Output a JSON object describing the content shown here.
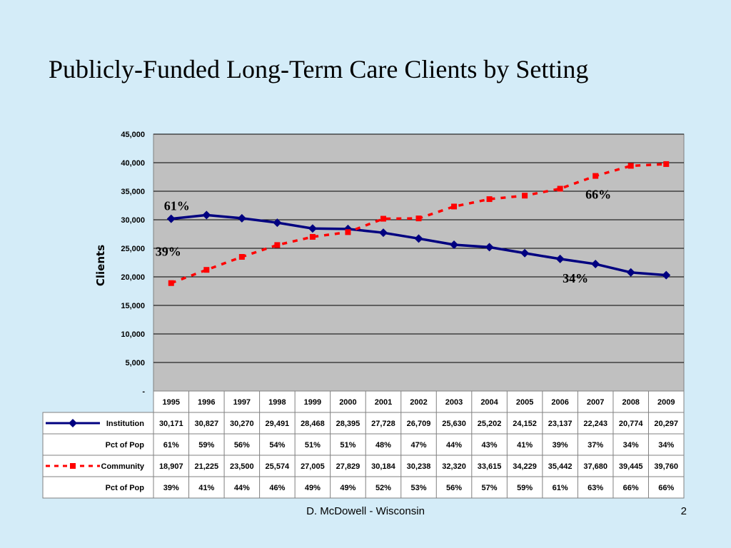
{
  "slide": {
    "title": "Publicly-Funded Long-Term Care Clients by Setting",
    "footer": "D. McDowell - Wisconsin",
    "page_number": "2"
  },
  "chart_data": {
    "type": "line",
    "title": "",
    "xlabel": "",
    "ylabel": "Clients",
    "x": [
      "1995",
      "1996",
      "1997",
      "1998",
      "1999",
      "2000",
      "2001",
      "2002",
      "2003",
      "2004",
      "2005",
      "2006",
      "2007",
      "2008",
      "2009"
    ],
    "ylim": [
      0,
      45000
    ],
    "yticks": [
      0,
      5000,
      10000,
      15000,
      20000,
      25000,
      30000,
      35000,
      40000,
      45000
    ],
    "ytick_labels": [
      "-",
      "5,000",
      "10,000",
      "15,000",
      "20,000",
      "25,000",
      "30,000",
      "35,000",
      "40,000",
      "45,000"
    ],
    "grid": true,
    "series": [
      {
        "name": "Institution",
        "color": "#000080",
        "style": "solid-diamond",
        "values": [
          30171,
          30827,
          30270,
          29491,
          28468,
          28395,
          27728,
          26709,
          25630,
          25202,
          24152,
          23137,
          22243,
          20774,
          20297
        ],
        "value_labels": [
          "30,171",
          "30,827",
          "30,270",
          "29,491",
          "28,468",
          "28,395",
          "27,728",
          "26,709",
          "25,630",
          "25,202",
          "24,152",
          "23,137",
          "22,243",
          "20,774",
          "20,297"
        ]
      },
      {
        "name": "Community",
        "color": "#ff0000",
        "style": "dashed-square",
        "values": [
          18907,
          21225,
          23500,
          25574,
          27005,
          27829,
          30184,
          30238,
          32320,
          33615,
          34229,
          35442,
          37680,
          39445,
          39760
        ],
        "value_labels": [
          "18,907",
          "21,225",
          "23,500",
          "25,574",
          "27,005",
          "27,829",
          "30,184",
          "30,238",
          "32,320",
          "33,615",
          "34,229",
          "35,442",
          "37,680",
          "39,445",
          "39,760"
        ]
      }
    ],
    "table_rows": [
      {
        "label": "Institution",
        "legend_series": 0,
        "cells": [
          "30,171",
          "30,827",
          "30,270",
          "29,491",
          "28,468",
          "28,395",
          "27,728",
          "26,709",
          "25,630",
          "25,202",
          "24,152",
          "23,137",
          "22,243",
          "20,774",
          "20,297"
        ]
      },
      {
        "label": "Pct of Pop",
        "legend_series": null,
        "cells": [
          "61%",
          "59%",
          "56%",
          "54%",
          "51%",
          "51%",
          "48%",
          "47%",
          "44%",
          "43%",
          "41%",
          "39%",
          "37%",
          "34%",
          "34%"
        ]
      },
      {
        "label": "Community",
        "legend_series": 1,
        "cells": [
          "18,907",
          "21,225",
          "23,500",
          "25,574",
          "27,005",
          "27,829",
          "30,184",
          "30,238",
          "32,320",
          "33,615",
          "34,229",
          "35,442",
          "37,680",
          "39,445",
          "39,760"
        ]
      },
      {
        "label": "Pct of Pop",
        "legend_series": null,
        "cells": [
          "39%",
          "41%",
          "44%",
          "46%",
          "49%",
          "49%",
          "52%",
          "53%",
          "56%",
          "57%",
          "59%",
          "61%",
          "63%",
          "66%",
          "66%"
        ]
      }
    ],
    "annotations": [
      {
        "text": "61%",
        "series": 0,
        "x": "1995",
        "side": "above"
      },
      {
        "text": "39%",
        "series": 1,
        "x": "1995",
        "side": "above-left"
      },
      {
        "text": "66%",
        "series": 1,
        "x": "2007",
        "side": "below-right"
      },
      {
        "text": "34%",
        "series": 0,
        "x": "2007",
        "side": "below-left"
      }
    ],
    "plot_background": "#c0c0c0"
  }
}
